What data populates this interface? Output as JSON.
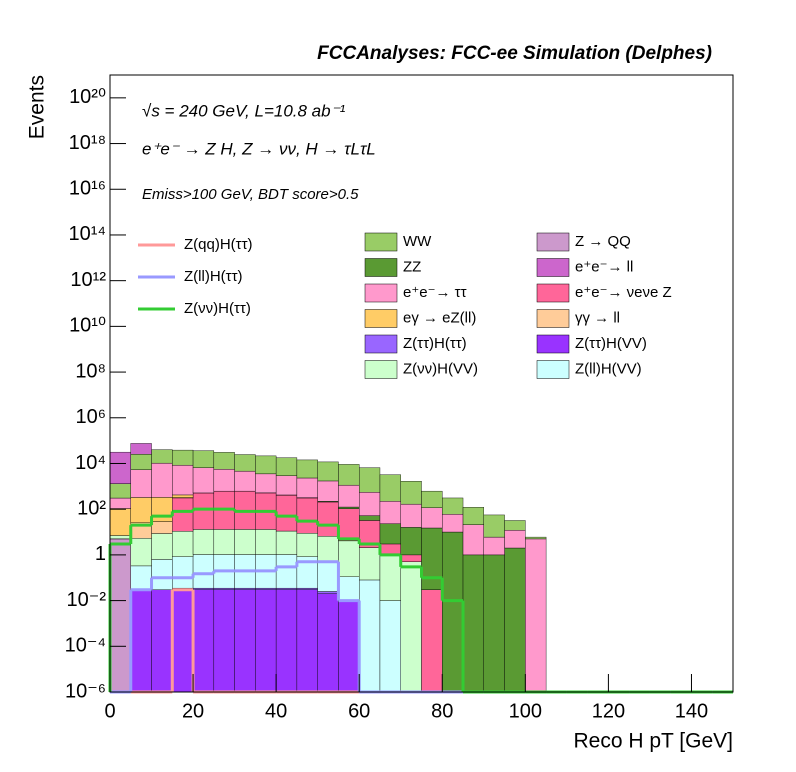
{
  "chart_data": {
    "type": "stacked_histogram",
    "title": "FCCAnalyses: FCC-ee Simulation (Delphes)",
    "annotations": [
      "√s = 240 GeV, L=10.8 ab⁻¹",
      "e⁺e⁻ → Z H, Z → νν, H → τLτL",
      "Emiss>100 GeV, BDT score>0.5"
    ],
    "x_label": "Reco H pT [GeV]",
    "y_label": "Events",
    "log_y": true,
    "xlim": [
      0,
      150
    ],
    "ylim": [
      1e-06,
      1e+21
    ],
    "xticks": [
      0,
      20,
      40,
      60,
      80,
      100,
      120,
      140
    ],
    "yticks": [
      {
        "value": 1e-06,
        "label": "10⁻⁶"
      },
      {
        "value": 0.0001,
        "label": "10⁻⁴"
      },
      {
        "value": 0.01,
        "label": "10⁻²"
      },
      1,
      {
        "value": 100,
        "label": "10²"
      },
      {
        "value": 10000.0,
        "label": "10⁴"
      },
      {
        "value": 1000000.0,
        "label": "10⁶"
      },
      {
        "value": 100000000.0,
        "label": "10⁸"
      },
      {
        "value": 10000000000.0,
        "label": "10¹⁰"
      },
      {
        "value": 1000000000000.0,
        "label": "10¹²"
      },
      {
        "value": 100000000000000.0,
        "label": "10¹⁴"
      },
      {
        "value": 1e+16,
        "label": "10¹⁶"
      },
      {
        "value": 1e+18,
        "label": "10¹⁸"
      },
      {
        "value": 1e+20,
        "label": "10²⁰"
      }
    ],
    "bins": [
      0,
      5,
      10,
      15,
      20,
      25,
      30,
      35,
      40,
      45,
      50,
      55,
      60,
      65,
      70,
      75,
      80,
      85,
      90,
      95,
      100,
      105,
      110,
      115,
      120,
      125,
      130,
      135,
      140,
      145,
      150
    ],
    "series": [
      {
        "name": "Z → QQ",
        "color": "#cc99cc",
        "values": [
          5,
          0,
          0,
          0,
          0,
          0,
          0,
          0,
          0,
          0,
          0,
          0,
          0,
          0,
          0,
          0,
          0,
          0,
          0,
          0,
          0,
          0,
          0,
          0,
          0,
          0,
          0,
          0,
          0,
          0
        ]
      },
      {
        "name": "Z(ττ)H(VV)",
        "color": "#9933ff",
        "values": [
          0.01,
          0.03,
          0.03,
          0.03,
          0.03,
          0.03,
          0.03,
          0.03,
          0.03,
          0.03,
          0.02,
          0.01,
          0,
          0,
          0,
          0,
          0,
          0,
          0,
          0,
          0,
          0,
          0,
          0,
          0,
          0,
          0,
          0,
          0,
          0
        ]
      },
      {
        "name": "Z(ττ)H(ττ)",
        "color": "#9966ff",
        "values": [
          0,
          0,
          0,
          0.005,
          0.005,
          0.005,
          0.005,
          0.005,
          0.005,
          0.005,
          0.005,
          0,
          0,
          0,
          0,
          0,
          0,
          0,
          0,
          0,
          0,
          0,
          0,
          0,
          0,
          0,
          0,
          0,
          0,
          0
        ]
      },
      {
        "name": "Z(ll)H(VV)",
        "color": "#ccffff",
        "values": [
          0.03,
          0.3,
          0.6,
          0.8,
          1,
          1,
          1,
          1,
          1,
          0.8,
          0.5,
          0.1,
          0.08,
          0.01,
          0,
          0,
          0,
          0,
          0,
          0,
          0,
          0,
          0,
          0,
          0,
          0,
          0,
          0,
          0,
          0
        ]
      },
      {
        "name": "Z(νν)H(VV)",
        "color": "#ccffcc",
        "values": [
          2,
          5,
          8,
          10,
          12,
          12,
          12,
          12,
          10,
          8,
          6,
          4,
          2,
          1,
          0.5,
          0,
          0,
          0,
          0,
          0,
          0,
          0,
          0,
          0,
          0,
          0,
          0,
          0,
          0,
          0
        ]
      },
      {
        "name": "e⁺e⁻→ νeνe Z",
        "color": "#ff6699",
        "values": [
          0,
          0,
          0,
          300,
          500,
          600,
          600,
          500,
          400,
          300,
          200,
          100,
          30,
          2,
          0.5,
          0.03,
          0,
          0,
          0,
          0,
          0,
          0,
          0,
          0,
          0,
          0,
          0,
          0,
          0,
          0
        ]
      },
      {
        "name": "ZZ",
        "color": "#5a9a33",
        "values": [
          0,
          0,
          0,
          0,
          1,
          2,
          3,
          5,
          8,
          10,
          15,
          20,
          20,
          20,
          15,
          15,
          10,
          1,
          1,
          2,
          0,
          0,
          0,
          0,
          0,
          0,
          0,
          0,
          0,
          0
        ]
      },
      {
        "name": "γγ → ll",
        "color": "#ffcc99",
        "values": [
          0,
          20,
          20,
          10,
          0,
          0,
          0,
          0,
          0,
          0,
          0,
          0,
          0,
          0,
          0,
          0,
          0,
          0,
          0,
          0,
          0,
          0,
          0,
          0,
          0,
          0,
          0,
          0,
          0,
          0
        ]
      },
      {
        "name": "eγ → eZ(ll)",
        "color": "#ffcc66",
        "values": [
          100,
          300,
          300,
          100,
          0,
          0,
          0,
          0,
          0,
          0,
          0,
          0,
          0,
          0,
          0,
          0,
          0,
          0,
          0,
          0,
          0,
          0,
          0,
          0,
          0,
          0,
          0,
          0,
          0,
          0
        ]
      },
      {
        "name": "e⁺e⁻→ ττ",
        "color": "#ff99cc",
        "values": [
          200,
          5000,
          10000,
          8000,
          6000,
          5000,
          4000,
          3000,
          2500,
          2000,
          1500,
          1000,
          500,
          200,
          150,
          100,
          50,
          20,
          5,
          10,
          5,
          0,
          0,
          0,
          0,
          0,
          0,
          0,
          0,
          0
        ]
      },
      {
        "name": "WW",
        "color": "#99cc66",
        "values": [
          1000,
          20000,
          30000,
          30000,
          30000,
          25000,
          20000,
          18000,
          15000,
          12000,
          10000,
          8000,
          6000,
          3000,
          1500,
          500,
          250,
          100,
          50,
          20,
          1,
          0,
          0,
          0,
          0,
          0,
          0,
          0,
          0,
          0
        ]
      },
      {
        "name": "e⁺e⁻→ ll",
        "color": "#cc66cc",
        "values": [
          30000,
          50000,
          0,
          0,
          0,
          0,
          0,
          0,
          0,
          0,
          0,
          0,
          0,
          0,
          0,
          0,
          0,
          0,
          0,
          0,
          0,
          0,
          0,
          0,
          0,
          0,
          0,
          0,
          0,
          0
        ]
      }
    ],
    "signals": [
      {
        "name": "Z(qq)H(ττ)",
        "color": "#ff9999",
        "values": [
          0,
          0,
          0,
          0.03,
          0,
          0,
          0,
          0,
          0,
          0,
          0,
          0,
          0,
          0,
          0,
          0,
          0,
          0,
          0,
          0,
          0,
          0,
          0,
          0,
          0,
          0,
          0,
          0,
          0,
          0
        ]
      },
      {
        "name": "Z(ll)H(ττ)",
        "color": "#9999ff",
        "values": [
          0,
          0.03,
          0.1,
          0.1,
          0.15,
          0.2,
          0.2,
          0.2,
          0.3,
          0.5,
          0.5,
          0.01,
          0,
          0,
          0,
          0,
          0,
          0,
          0,
          0,
          0,
          0,
          0,
          0,
          0,
          0,
          0,
          0,
          0,
          0
        ]
      },
      {
        "name": "Z(νν)H(ττ)",
        "color": "#33cc33",
        "values": [
          3,
          20,
          50,
          80,
          100,
          100,
          80,
          80,
          50,
          30,
          20,
          5,
          3,
          1,
          0.3,
          0.1,
          0.01,
          0,
          0,
          0,
          0,
          0,
          0,
          0,
          0,
          0,
          0,
          0,
          0,
          0
        ]
      }
    ]
  }
}
